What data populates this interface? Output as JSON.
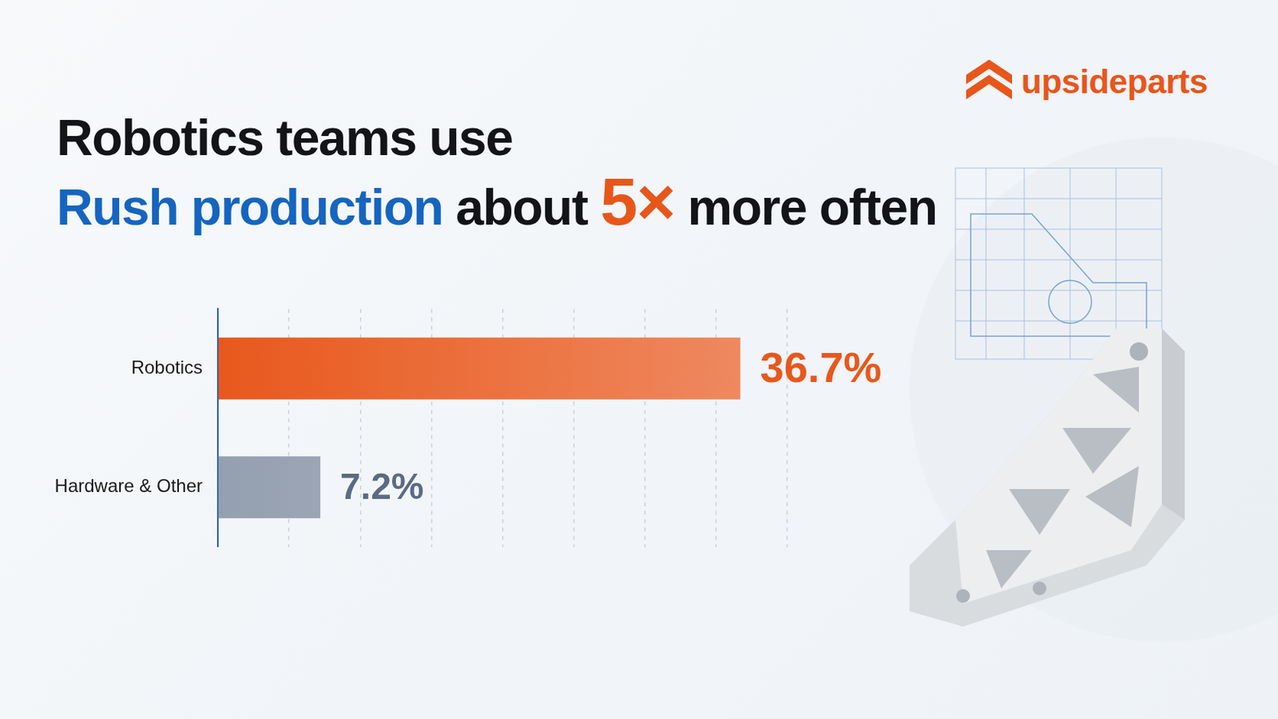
{
  "brand": "upsideparts",
  "headline": [
    [
      "Robotics teams use"
    ],
    [
      "Rush production",
      "about",
      "5×",
      "more often"
    ]
  ],
  "chart_data": {
    "type": "bar",
    "orientation": "horizontal",
    "categories": [
      "Robotics",
      "Hardware & Other"
    ],
    "values": [
      36.7,
      7.2
    ],
    "value_labels": [
      "36.7%",
      "7.2%"
    ],
    "data_labels": true,
    "colors": [
      "#e8581c",
      "#5b6b84"
    ],
    "xlim": [
      0,
      40
    ],
    "xticks": [
      0,
      5,
      10,
      15,
      20,
      25,
      30,
      35,
      40
    ],
    "grid": true,
    "tick_labels": "y"
  }
}
